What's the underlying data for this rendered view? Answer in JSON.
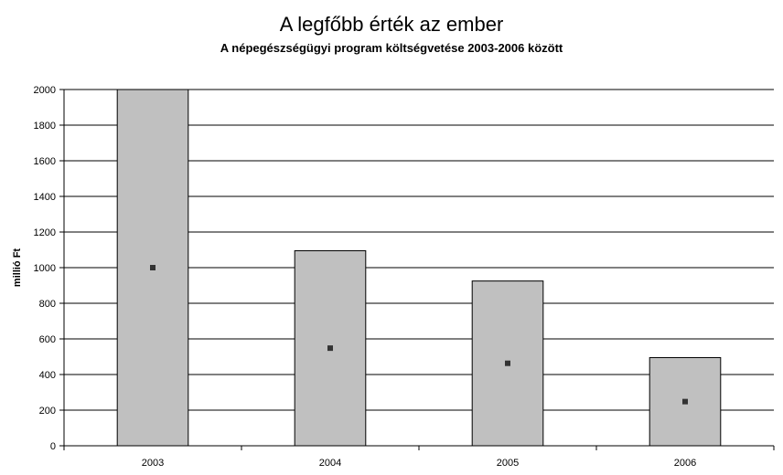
{
  "chart_data": {
    "type": "bar",
    "title": "A legfőbb érték az ember",
    "subtitle": "A népegészségügyi program költségvetése 2003-2006 között",
    "xlabel": "",
    "ylabel": "millió Ft",
    "categories": [
      "2003",
      "2004",
      "2005",
      "2006"
    ],
    "values": [
      2000,
      1095,
      925,
      495
    ],
    "markers": [
      1000,
      548,
      463,
      248
    ],
    "ylim": [
      0,
      2000
    ],
    "yticks": [
      0,
      200,
      400,
      600,
      800,
      1000,
      1200,
      1400,
      1600,
      1800,
      2000
    ],
    "grid": true,
    "legend": "none",
    "colors": {
      "bar": "#c0c0c0",
      "bar_border": "#000000",
      "marker": "#333333",
      "grid": "#000000"
    }
  }
}
